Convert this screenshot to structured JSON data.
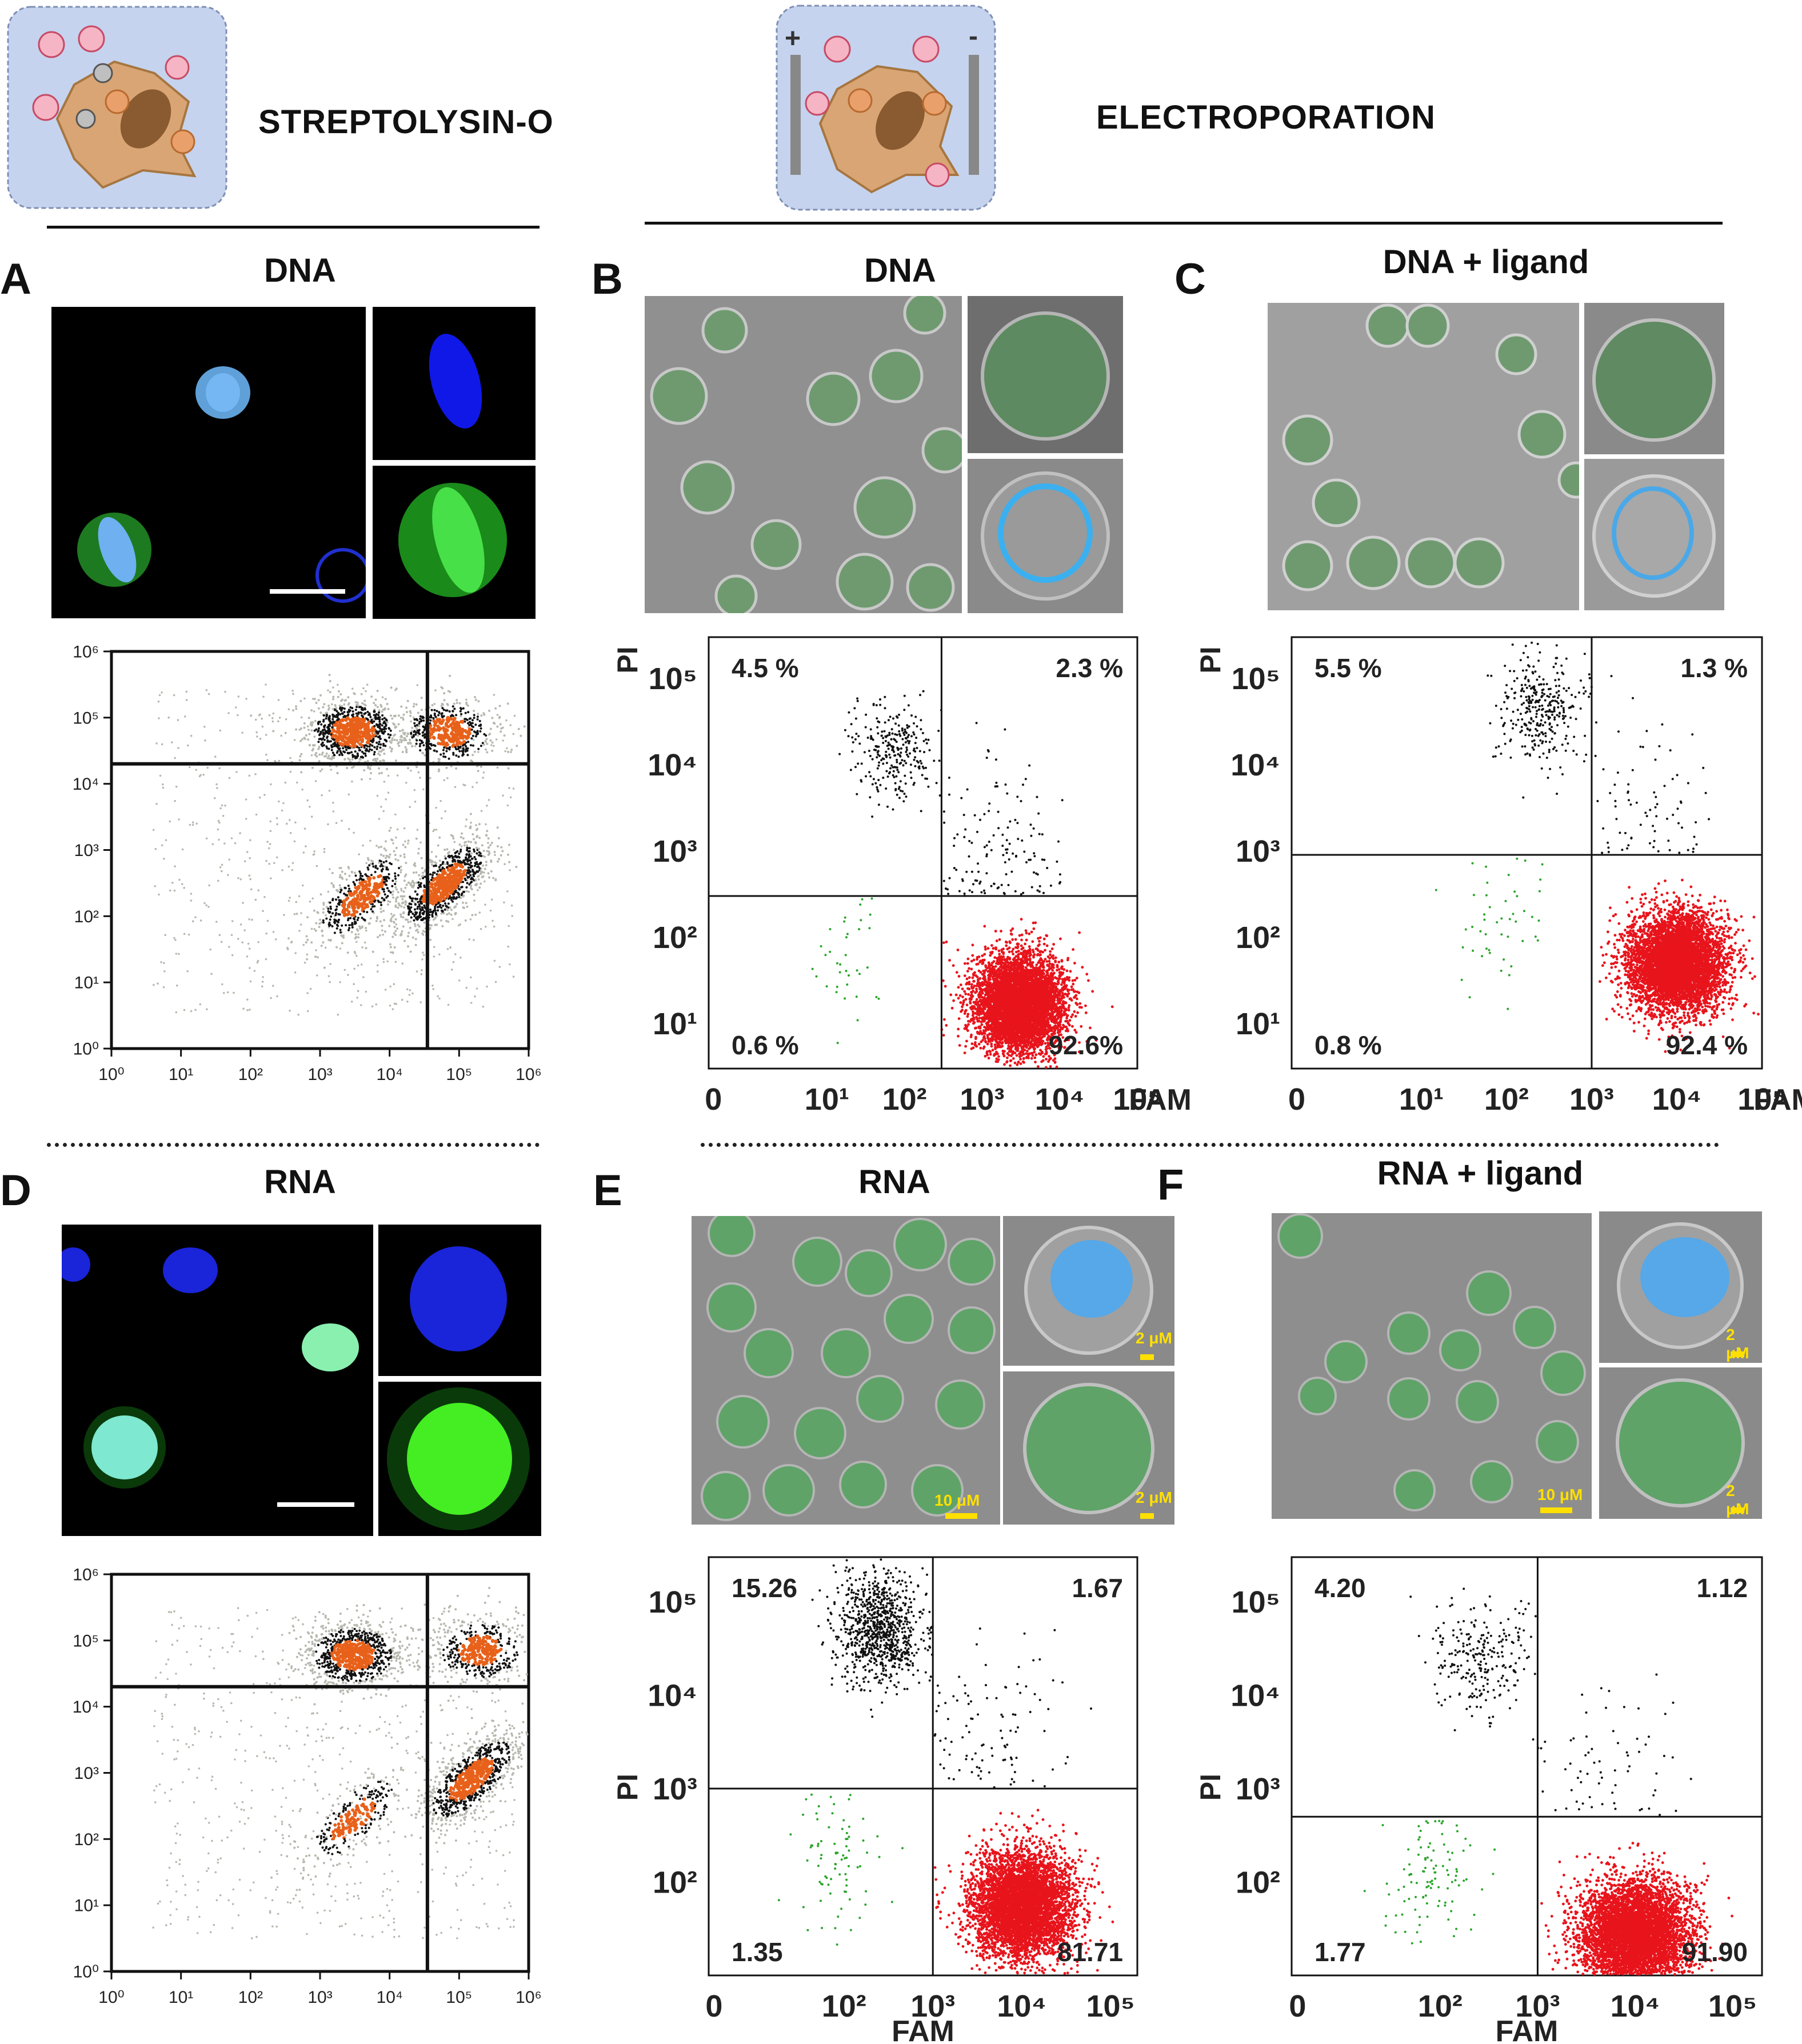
{
  "headers": {
    "slo": "STREPTOLYSIN-O",
    "ep": "ELECTROPORATION",
    "plus": "+",
    "minus": "-"
  },
  "panels": {
    "A": {
      "label": "A",
      "title": "DNA"
    },
    "B": {
      "label": "B",
      "title": "DNA"
    },
    "C": {
      "label": "C",
      "title": "DNA + ligand"
    },
    "D": {
      "label": "D",
      "title": "RNA"
    },
    "E": {
      "label": "E",
      "title": "RNA"
    },
    "F": {
      "label": "F",
      "title": "RNA + ligand"
    }
  },
  "scalebars": {
    "e_main": "10 μM",
    "e_top": "2 μM",
    "e_bottom": "2 μM",
    "f_main": "10 μM",
    "f_top": "2 μM",
    "f_bottom": "2 μM"
  },
  "chart_data": [
    {
      "id": "A",
      "type": "scatter",
      "title": "",
      "xlabel": "",
      "ylabel": "",
      "xscale": "log",
      "yscale": "log",
      "xlim": [
        1,
        1000000
      ],
      "ylim": [
        1,
        1000000
      ],
      "xticks": [
        "10⁰",
        "10¹",
        "10²",
        "10³",
        "10⁴",
        "10⁵",
        "10⁶"
      ],
      "yticks": [
        "10⁰",
        "10¹",
        "10²",
        "10³",
        "10⁴",
        "10⁵",
        "10⁶"
      ],
      "gate": {
        "x": 35000,
        "y": 20000
      },
      "quadrant_labels": [],
      "clusters": [
        {
          "x": 3000,
          "y": 60000,
          "color": "#e8611a",
          "density": "high"
        },
        {
          "x": 70000,
          "y": 60000,
          "color": "#e8611a",
          "density": "medium"
        },
        {
          "x": 4000,
          "y": 200,
          "color": "#e8611a",
          "density": "medium"
        },
        {
          "x": 60000,
          "y": 300,
          "color": "#e8611a",
          "density": "high"
        }
      ]
    },
    {
      "id": "B",
      "type": "scatter",
      "title": "",
      "xlabel": "FAM",
      "ylabel": "PI",
      "xscale": "log",
      "yscale": "log",
      "xlim": [
        0.3,
        100000
      ],
      "ylim": [
        3,
        300000
      ],
      "xticks": [
        "0",
        "10¹",
        "10²",
        "10³",
        "10⁴",
        "10⁵"
      ],
      "yticks": [
        "10¹",
        "10²",
        "10³",
        "10⁴",
        "10⁵"
      ],
      "gate": {
        "x": 300,
        "y": 300
      },
      "quadrant_labels": {
        "top_left": "4.5 %",
        "top_right": "2.3 %",
        "bottom_left": "0.6 %",
        "bottom_right": "92.6%"
      },
      "quadrant_values_percent": {
        "top_left": 4.5,
        "top_right": 2.3,
        "bottom_left": 0.6,
        "bottom_right": 92.6
      },
      "colors": {
        "top_left": "#111111",
        "top_right": "#111111",
        "bottom_left": "#2aa52a",
        "bottom_right": "#e8141c"
      }
    },
    {
      "id": "C",
      "type": "scatter",
      "title": "",
      "xlabel": "FAM",
      "ylabel": "PI",
      "xscale": "log",
      "yscale": "log",
      "xlim": [
        0.3,
        100000
      ],
      "ylim": [
        3,
        300000
      ],
      "xticks": [
        "0",
        "10¹",
        "10²",
        "10³",
        "10⁴",
        "10⁵"
      ],
      "yticks": [
        "10¹",
        "10²",
        "10³",
        "10⁴",
        "10⁵"
      ],
      "gate": {
        "x": 1000,
        "y": 900
      },
      "quadrant_labels": {
        "top_left": "5.5 %",
        "top_right": "1.3 %",
        "bottom_left": "0.8 %",
        "bottom_right": "92.4 %"
      },
      "quadrant_values_percent": {
        "top_left": 5.5,
        "top_right": 1.3,
        "bottom_left": 0.8,
        "bottom_right": 92.4
      },
      "colors": {
        "top_left": "#111111",
        "top_right": "#111111",
        "bottom_left": "#2aa52a",
        "bottom_right": "#e8141c"
      }
    },
    {
      "id": "D",
      "type": "scatter",
      "title": "",
      "xlabel": "",
      "ylabel": "",
      "xscale": "log",
      "yscale": "log",
      "xlim": [
        1,
        1000000
      ],
      "ylim": [
        1,
        1000000
      ],
      "xticks": [
        "10⁰",
        "10¹",
        "10²",
        "10³",
        "10⁴",
        "10⁵",
        "10⁶"
      ],
      "yticks": [
        "10⁰",
        "10¹",
        "10²",
        "10³",
        "10⁴",
        "10⁵",
        "10⁶"
      ],
      "gate": {
        "x": 35000,
        "y": 20000
      },
      "quadrant_labels": [],
      "clusters": [
        {
          "x": 3000,
          "y": 60000,
          "color": "#e8611a",
          "density": "high"
        },
        {
          "x": 200000,
          "y": 70000,
          "color": "#e8611a",
          "density": "medium"
        },
        {
          "x": 3000,
          "y": 200,
          "color": "#e8611a",
          "density": "low"
        },
        {
          "x": 150000,
          "y": 800,
          "color": "#e8611a",
          "density": "high"
        }
      ]
    },
    {
      "id": "E",
      "type": "scatter",
      "title": "",
      "xlabel": "FAM",
      "ylabel": "PI",
      "xscale": "log",
      "yscale": "log",
      "xlim": [
        3,
        200000
      ],
      "ylim": [
        10,
        300000
      ],
      "xticks": [
        "0",
        "10²",
        "10³",
        "10⁴",
        "10⁵"
      ],
      "yticks": [
        "10²",
        "10³",
        "10⁴",
        "10⁵"
      ],
      "gate": {
        "x": 1000,
        "y": 1000
      },
      "quadrant_labels": {
        "top_left": "15.26",
        "top_right": "1.67",
        "bottom_left": "1.35",
        "bottom_right": "81.71"
      },
      "quadrant_values_percent": {
        "top_left": 15.26,
        "top_right": 1.67,
        "bottom_left": 1.35,
        "bottom_right": 81.71
      },
      "colors": {
        "top_left": "#111111",
        "top_right": "#111111",
        "bottom_left": "#2aa52a",
        "bottom_right": "#e8141c"
      }
    },
    {
      "id": "F",
      "type": "scatter",
      "title": "",
      "xlabel": "FAM",
      "ylabel": "PI",
      "xscale": "log",
      "yscale": "log",
      "xlim": [
        3,
        200000
      ],
      "ylim": [
        10,
        300000
      ],
      "xticks": [
        "0",
        "10²",
        "10³",
        "10⁴",
        "10⁵"
      ],
      "yticks": [
        "10²",
        "10³",
        "10⁴",
        "10⁵"
      ],
      "gate": {
        "x": 1000,
        "y": 500
      },
      "quadrant_labels": {
        "top_left": "4.20",
        "top_right": "1.12",
        "bottom_left": "1.77",
        "bottom_right": "91.90"
      },
      "quadrant_values_percent": {
        "top_left": 4.2,
        "top_right": 1.12,
        "bottom_left": 1.77,
        "bottom_right": 91.9
      },
      "colors": {
        "top_left": "#111111",
        "top_right": "#111111",
        "bottom_left": "#2aa52a",
        "bottom_right": "#e8141c"
      }
    }
  ]
}
